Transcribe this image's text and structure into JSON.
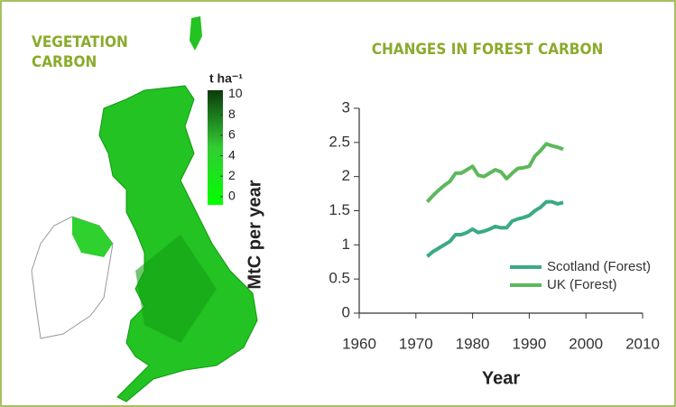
{
  "chart_data": [
    {
      "type": "map",
      "title": "VEGETATION CARBON",
      "colorbar_label": "t ha⁻¹",
      "colorbar_lim": [
        -0.8,
        10.4
      ],
      "colorbar_ticks": [
        0,
        2,
        4,
        6,
        8,
        10
      ],
      "colorbar_colors": [
        "#00ff00",
        "#33cc33",
        "#0b3b0b"
      ]
    },
    {
      "type": "line",
      "title": "CHANGES IN FOREST CARBON",
      "xlabel": "Year",
      "ylabel": "MtC per year",
      "x": [
        1972,
        1973,
        1974,
        1975,
        1976,
        1977,
        1978,
        1979,
        1980,
        1981,
        1982,
        1983,
        1984,
        1985,
        1986,
        1987,
        1988,
        1989,
        1990,
        1991,
        1992,
        1993,
        1994,
        1995,
        1996
      ],
      "series": [
        {
          "name": "Scotland (Forest)",
          "color": "#3aaa85",
          "values": [
            0.83,
            0.9,
            0.95,
            1.0,
            1.05,
            1.15,
            1.15,
            1.18,
            1.23,
            1.18,
            1.2,
            1.23,
            1.27,
            1.25,
            1.25,
            1.35,
            1.38,
            1.4,
            1.43,
            1.5,
            1.55,
            1.63,
            1.63,
            1.6,
            1.62
          ]
        },
        {
          "name": "UK (Forest)",
          "color": "#5cb85c",
          "values": [
            1.63,
            1.72,
            1.8,
            1.87,
            1.93,
            2.05,
            2.05,
            2.1,
            2.15,
            2.02,
            2.0,
            2.05,
            2.1,
            2.07,
            1.97,
            2.05,
            2.12,
            2.13,
            2.15,
            2.3,
            2.38,
            2.48,
            2.45,
            2.43,
            2.4
          ]
        }
      ],
      "xlim": [
        1960,
        2010
      ],
      "xticks": [
        1960,
        1970,
        1980,
        1990,
        2000,
        2010
      ],
      "ylim": [
        0,
        3
      ],
      "yticks": [
        0,
        0.5,
        1,
        1.5,
        2,
        2.5,
        3
      ],
      "legend": "lower right"
    }
  ]
}
